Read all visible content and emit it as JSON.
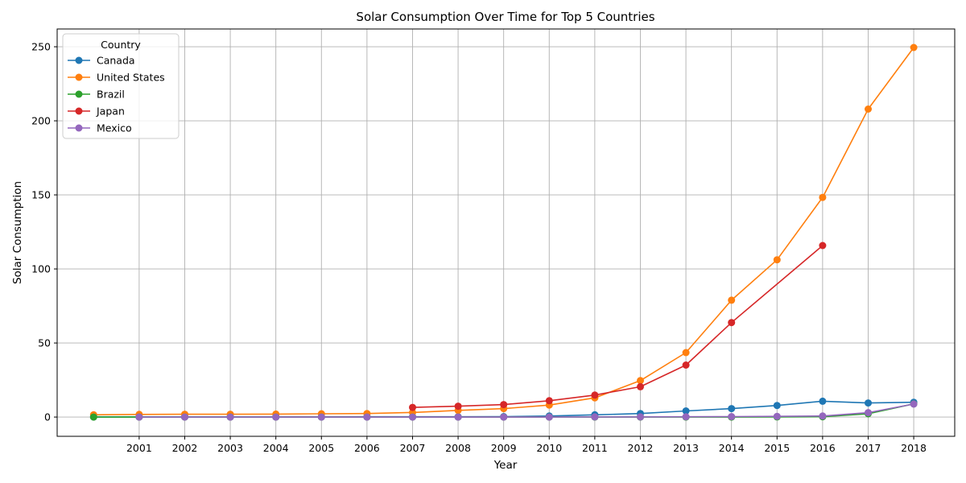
{
  "chart_data": {
    "type": "line",
    "title": "Solar Consumption Over Time for Top 5 Countries",
    "xlabel": "Year",
    "ylabel": "Solar Consumption",
    "x": [
      2000,
      2001,
      2002,
      2003,
      2004,
      2005,
      2006,
      2007,
      2008,
      2009,
      2010,
      2011,
      2012,
      2013,
      2014,
      2015,
      2016,
      2017,
      2018
    ],
    "x_tick_labels": [
      "2001",
      "2002",
      "2003",
      "2004",
      "2005",
      "2006",
      "2007",
      "2008",
      "2009",
      "2010",
      "2011",
      "2012",
      "2013",
      "2014",
      "2015",
      "2016",
      "2017",
      "2018"
    ],
    "y_ticks": [
      0,
      50,
      100,
      150,
      200,
      250
    ],
    "ylim": [
      -13,
      262
    ],
    "xlim": [
      1999.2,
      2018.9
    ],
    "grid": true,
    "legend_title": "Country",
    "legend_position": "top-left",
    "series": [
      {
        "name": "Canada",
        "color": "#1f77b4",
        "values": [
          0.1,
          0.1,
          0.1,
          0.1,
          0.1,
          0.1,
          0.2,
          0.2,
          0.2,
          0.3,
          0.7,
          1.5,
          2.4,
          4.1,
          5.7,
          7.8,
          10.7,
          9.5,
          10.0
        ]
      },
      {
        "name": "United States",
        "color": "#ff7f0e",
        "values": [
          1.5,
          1.8,
          1.9,
          1.9,
          2.0,
          2.2,
          2.4,
          3.1,
          4.5,
          5.7,
          8.1,
          13.0,
          24.6,
          43.5,
          78.9,
          106.2,
          148.3,
          207.9,
          249.5
        ]
      },
      {
        "name": "Brazil",
        "color": "#2ca02c",
        "values": [
          0,
          0,
          0,
          0,
          0,
          0,
          0,
          0,
          0,
          0,
          0,
          0,
          0,
          0,
          0,
          0.1,
          0.2,
          2.2,
          8.9
        ]
      },
      {
        "name": "Japan",
        "color": "#d62728",
        "values": [
          null,
          null,
          null,
          null,
          null,
          null,
          null,
          6.5,
          7.3,
          8.4,
          11.0,
          14.8,
          20.5,
          35.1,
          63.8,
          null,
          115.8,
          null,
          null
        ]
      },
      {
        "name": "Mexico",
        "color": "#9467bd",
        "values": [
          null,
          0,
          0,
          0,
          0,
          0,
          0,
          0,
          0,
          0,
          0,
          0.1,
          0.1,
          0.2,
          0.3,
          0.5,
          0.7,
          3.0,
          8.8
        ]
      }
    ]
  }
}
